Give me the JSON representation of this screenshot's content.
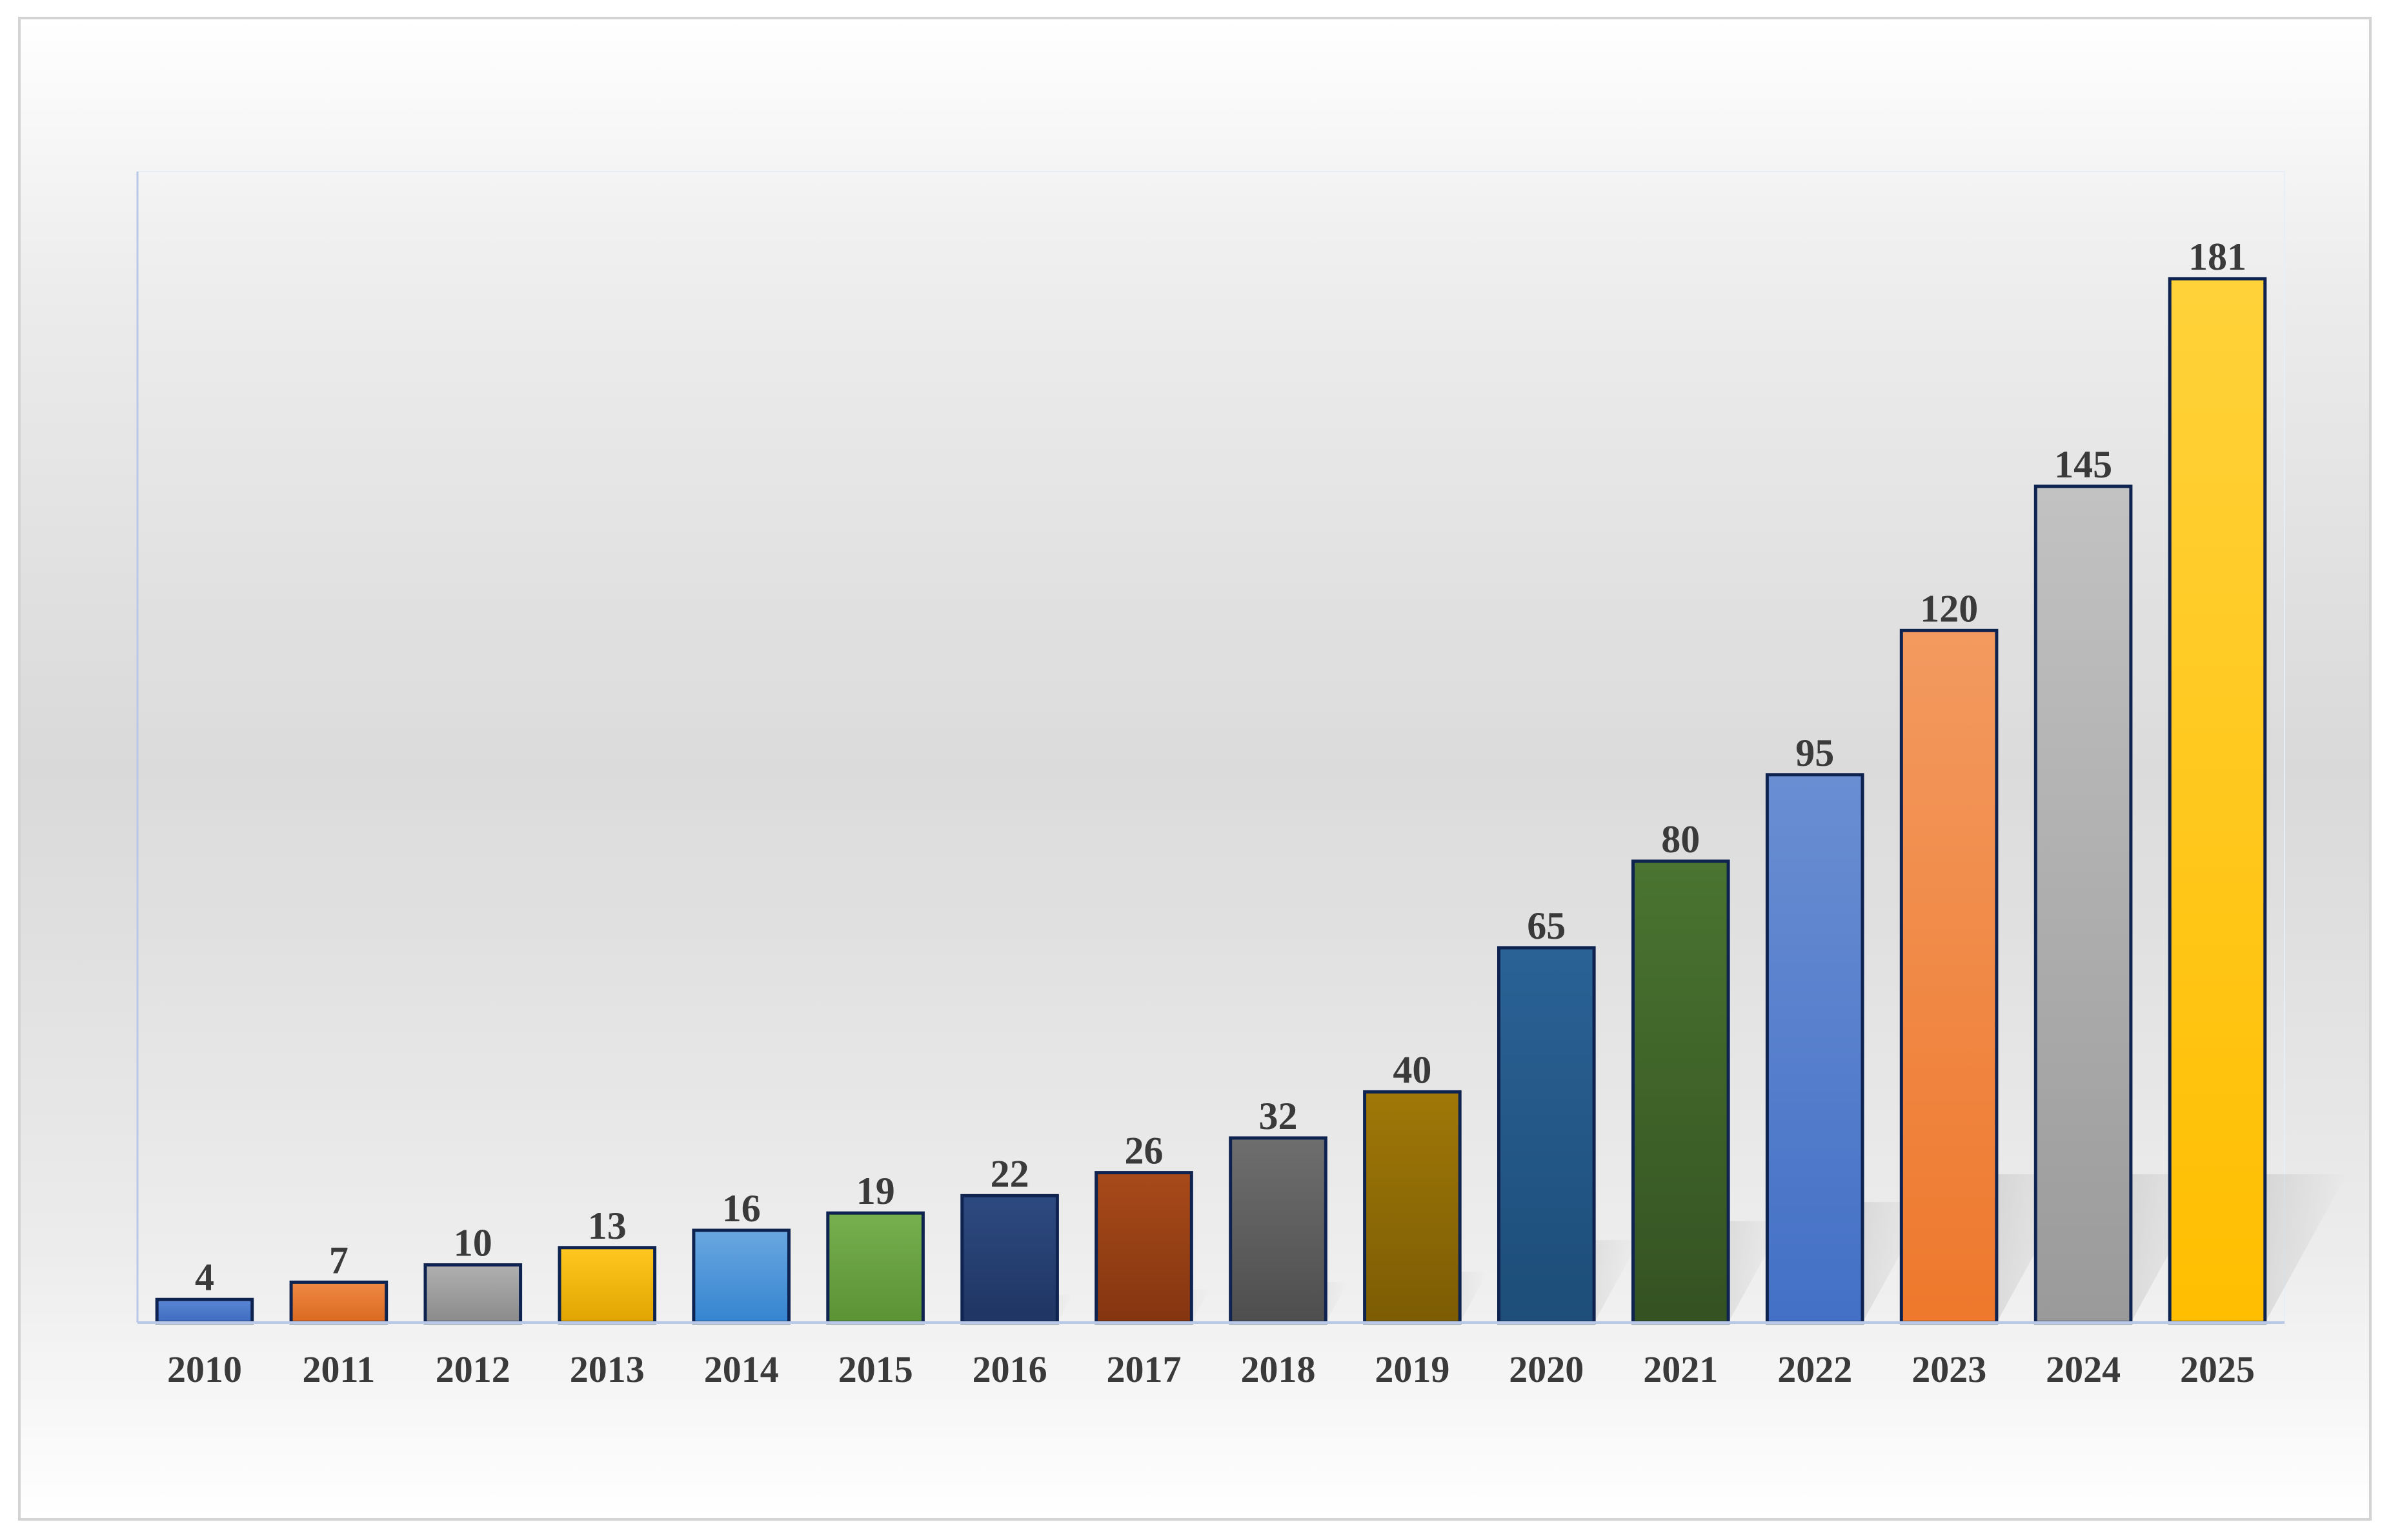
{
  "chart_data": {
    "type": "bar",
    "title": "",
    "xlabel": "",
    "ylabel": "",
    "categories": [
      "2010",
      "2011",
      "2012",
      "2013",
      "2014",
      "2015",
      "2016",
      "2017",
      "2018",
      "2019",
      "2020",
      "2021",
      "2022",
      "2023",
      "2024",
      "2025"
    ],
    "values": [
      4,
      7,
      10,
      13,
      16,
      19,
      22,
      26,
      32,
      40,
      65,
      80,
      95,
      120,
      145,
      181
    ],
    "ylim": [
      0,
      181
    ],
    "grid": false,
    "legend": "none",
    "data_labels": true,
    "bar_colors": [
      [
        "#5a86d4",
        "#3f6bc0"
      ],
      [
        "#f08a45",
        "#d9681f"
      ],
      [
        "#b0b0b0",
        "#8a8a8a"
      ],
      [
        "#ffc820",
        "#e0a400"
      ],
      [
        "#69a7e0",
        "#3584d0"
      ],
      [
        "#77b04e",
        "#5a9235"
      ],
      [
        "#2d4a80",
        "#1f3563"
      ],
      [
        "#a84a1a",
        "#843510"
      ],
      [
        "#6e6e6e",
        "#4e4e4e"
      ],
      [
        "#a07808",
        "#7c5c04"
      ],
      [
        "#2a6296",
        "#1d4d78"
      ],
      [
        "#4a7430",
        "#345222"
      ],
      [
        "#6a8ed2",
        "#4370c6"
      ],
      [
        "#f39a60",
        "#ee782c"
      ],
      [
        "#c2c2c2",
        "#9a9a9a"
      ],
      [
        "#ffd23a",
        "#ffbe00"
      ]
    ],
    "bar_outline_color": "#0f2350",
    "label_color": "#3a3a3a"
  }
}
